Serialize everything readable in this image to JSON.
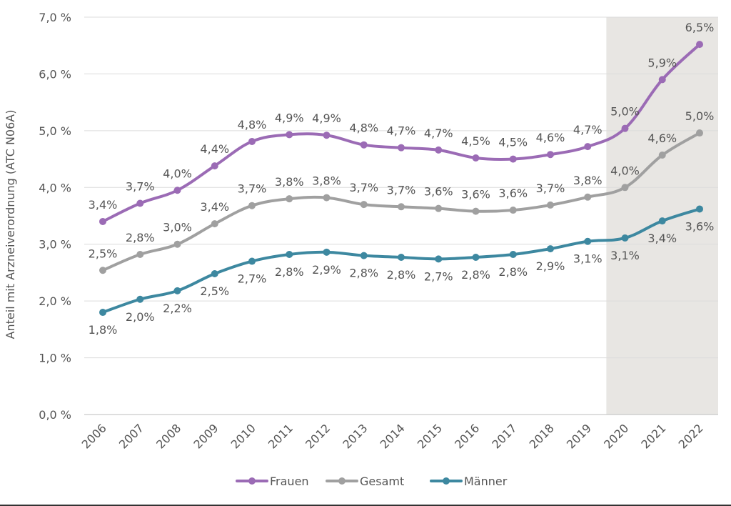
{
  "chart_data": {
    "type": "line",
    "title": "",
    "xlabel": "",
    "ylabel": "Anteil mit Arzneiverordnung (ATC N06A)",
    "ylim": [
      0,
      7
    ],
    "yticks": [
      "0,0 %",
      "1,0 %",
      "2,0 %",
      "3,0 %",
      "4,0 %",
      "5,0 %",
      "6,0 %",
      "7,0 %"
    ],
    "ytick_values": [
      0,
      1,
      2,
      3,
      4,
      5,
      6,
      7
    ],
    "grid": true,
    "legend_position": "bottom",
    "highlight_range": [
      "2020",
      "2022"
    ],
    "highlight_color": "#e8e6e3",
    "categories": [
      "2006",
      "2007",
      "2008",
      "2009",
      "2010",
      "2011",
      "2012",
      "2013",
      "2014",
      "2015",
      "2016",
      "2017",
      "2018",
      "2019",
      "2020",
      "2021",
      "2022"
    ],
    "series": [
      {
        "name": "Frauen",
        "color": "#9b6bb5",
        "values": [
          3.4,
          3.72,
          3.95,
          4.38,
          4.81,
          4.93,
          4.92,
          4.75,
          4.7,
          4.66,
          4.52,
          4.5,
          4.58,
          4.72,
          5.04,
          5.9,
          6.52
        ],
        "labels": [
          "3,4%",
          "3,7%",
          "4,0%",
          "4,4%",
          "4,8%",
          "4,9%",
          "4,9%",
          "4,8%",
          "4,7%",
          "4,7%",
          "4,5%",
          "4,5%",
          "4,6%",
          "4,7%",
          "5,0%",
          "5,9%",
          "6,5%"
        ]
      },
      {
        "name": "Gesamt",
        "color": "#a0a0a0",
        "values": [
          2.54,
          2.82,
          3.0,
          3.36,
          3.68,
          3.8,
          3.82,
          3.7,
          3.66,
          3.63,
          3.58,
          3.6,
          3.69,
          3.83,
          4.0,
          4.57,
          4.96
        ],
        "labels": [
          "2,5%",
          "2,8%",
          "3,0%",
          "3,4%",
          "3,7%",
          "3,8%",
          "3,8%",
          "3,7%",
          "3,7%",
          "3,6%",
          "3,6%",
          "3,6%",
          "3,7%",
          "3,8%",
          "4,0%",
          "4,6%",
          "5,0%"
        ]
      },
      {
        "name": "Männer",
        "color": "#3d88a0",
        "values": [
          1.8,
          2.03,
          2.18,
          2.48,
          2.7,
          2.82,
          2.86,
          2.8,
          2.77,
          2.74,
          2.77,
          2.82,
          2.92,
          3.05,
          3.11,
          3.41,
          3.62
        ],
        "labels": [
          "1,8%",
          "2,0%",
          "2,2%",
          "2,5%",
          "2,7%",
          "2,8%",
          "2,9%",
          "2,8%",
          "2,8%",
          "2,7%",
          "2,8%",
          "2,8%",
          "2,9%",
          "3,1%",
          "3,1%",
          "3,4%",
          "3,6%"
        ]
      }
    ]
  }
}
